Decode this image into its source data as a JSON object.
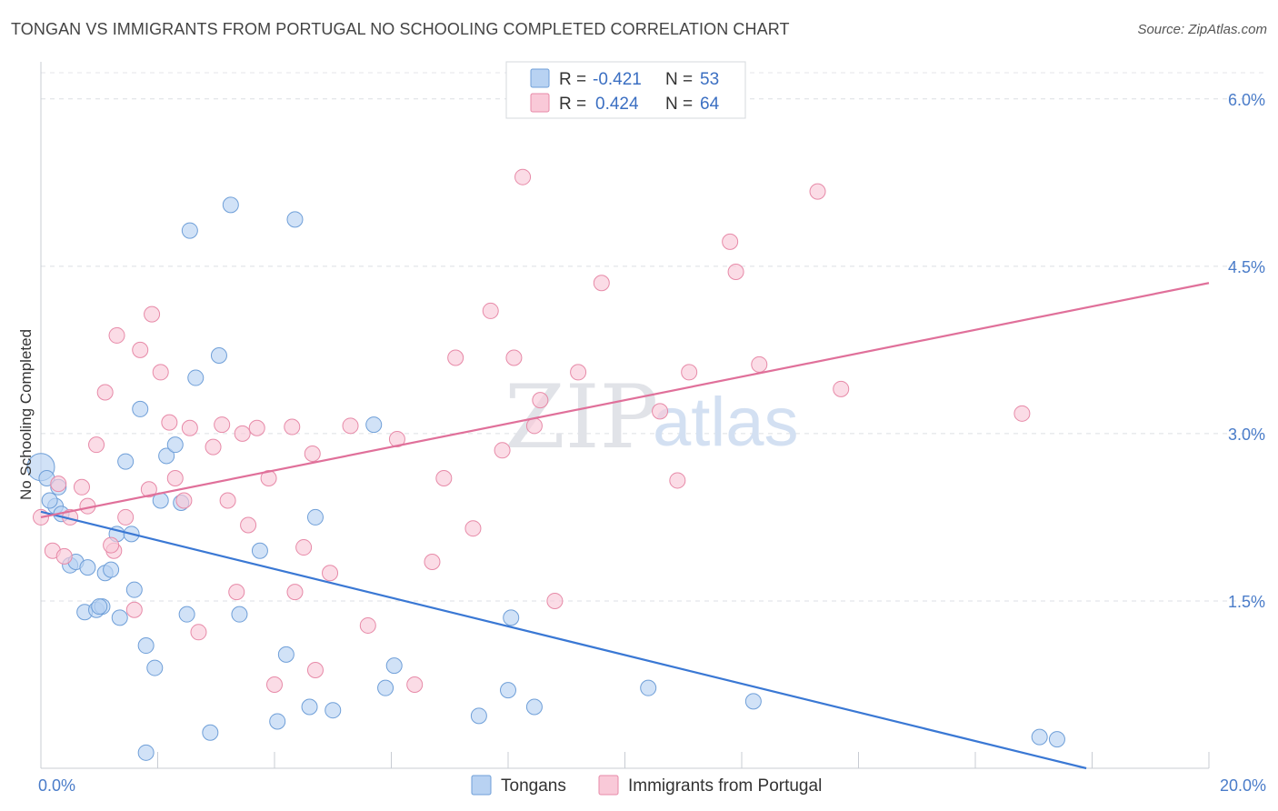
{
  "title": "TONGAN VS IMMIGRANTS FROM PORTUGAL NO SCHOOLING COMPLETED CORRELATION CHART",
  "source": "Source: ZipAtlas.com",
  "watermark": {
    "zip": "ZIP",
    "atlas": "atlas"
  },
  "colors": {
    "blue_fill": "#b8d2f2",
    "blue_stroke": "#6f9fd8",
    "blue_line": "#3a78d4",
    "pink_fill": "#f9c9d8",
    "pink_stroke": "#e78aa8",
    "pink_line": "#e0709a"
  },
  "legend": {
    "rows": [
      {
        "r_label": "R =",
        "r_value": "-0.421",
        "n_label": "N =",
        "n_value": "53"
      },
      {
        "r_label": "R =",
        "r_value": "0.424",
        "n_label": "N =",
        "n_value": "64"
      }
    ]
  },
  "bottom_legend": {
    "items": [
      "Tongans",
      "Immigrants from Portugal"
    ]
  },
  "chart_data": {
    "type": "scatter",
    "title": "TONGAN VS IMMIGRANTS FROM PORTUGAL NO SCHOOLING COMPLETED CORRELATION CHART",
    "ylabel": "No Schooling Completed",
    "xlim": [
      0,
      20
    ],
    "ylim": [
      0,
      6.3
    ],
    "x_tick_labels": [
      {
        "value": 0,
        "label": "0.0%"
      },
      {
        "value": 20,
        "label": "20.0%"
      }
    ],
    "y_tick_labels": [
      {
        "value": 1.5,
        "label": "1.5%"
      },
      {
        "value": 3.0,
        "label": "3.0%"
      },
      {
        "value": 4.5,
        "label": "4.5%"
      },
      {
        "value": 6.0,
        "label": "6.0%"
      }
    ],
    "series": [
      {
        "name": "Tongans",
        "trend": [
          [
            0,
            2.3
          ],
          [
            17.9,
            0.0
          ]
        ],
        "points": [
          [
            0.0,
            2.7
          ],
          [
            0.1,
            2.6
          ],
          [
            0.3,
            2.52
          ],
          [
            0.25,
            2.35
          ],
          [
            0.35,
            2.28
          ],
          [
            0.5,
            1.82
          ],
          [
            0.6,
            1.85
          ],
          [
            0.8,
            1.8
          ],
          [
            1.1,
            1.75
          ],
          [
            1.2,
            1.78
          ],
          [
            0.75,
            1.4
          ],
          [
            0.95,
            1.42
          ],
          [
            1.05,
            1.45
          ],
          [
            1.35,
            1.35
          ],
          [
            1.6,
            1.6
          ],
          [
            1.8,
            1.1
          ],
          [
            1.95,
            0.9
          ],
          [
            1.3,
            2.1
          ],
          [
            1.55,
            2.1
          ],
          [
            1.45,
            2.75
          ],
          [
            1.7,
            3.22
          ],
          [
            2.05,
            2.4
          ],
          [
            2.15,
            2.8
          ],
          [
            2.3,
            2.9
          ],
          [
            2.4,
            2.38
          ],
          [
            2.5,
            1.38
          ],
          [
            2.55,
            4.82
          ],
          [
            2.65,
            3.5
          ],
          [
            3.05,
            3.7
          ],
          [
            3.25,
            5.05
          ],
          [
            2.9,
            0.32
          ],
          [
            3.4,
            1.38
          ],
          [
            3.75,
            1.95
          ],
          [
            4.05,
            0.42
          ],
          [
            4.2,
            1.02
          ],
          [
            4.35,
            4.92
          ],
          [
            4.6,
            0.55
          ],
          [
            4.7,
            2.25
          ],
          [
            5.0,
            0.52
          ],
          [
            5.7,
            3.08
          ],
          [
            5.9,
            0.72
          ],
          [
            6.05,
            0.92
          ],
          [
            1.8,
            0.14
          ],
          [
            7.5,
            0.47
          ],
          [
            8.0,
            0.7
          ],
          [
            8.05,
            1.35
          ],
          [
            8.45,
            0.55
          ],
          [
            10.4,
            0.72
          ],
          [
            12.2,
            0.6
          ],
          [
            17.1,
            0.28
          ],
          [
            17.4,
            0.26
          ],
          [
            0.15,
            2.4
          ],
          [
            1.0,
            1.45
          ]
        ]
      },
      {
        "name": "Immigrants from Portugal",
        "trend": [
          [
            0,
            2.25
          ],
          [
            20,
            4.35
          ]
        ],
        "points": [
          [
            0.0,
            2.25
          ],
          [
            0.2,
            1.95
          ],
          [
            0.4,
            1.9
          ],
          [
            0.5,
            2.25
          ],
          [
            0.7,
            2.52
          ],
          [
            0.8,
            2.35
          ],
          [
            0.95,
            2.9
          ],
          [
            1.1,
            3.37
          ],
          [
            1.25,
            1.95
          ],
          [
            1.3,
            3.88
          ],
          [
            1.45,
            2.25
          ],
          [
            1.6,
            1.42
          ],
          [
            1.7,
            3.75
          ],
          [
            1.85,
            2.5
          ],
          [
            1.9,
            4.07
          ],
          [
            2.05,
            3.55
          ],
          [
            2.2,
            3.1
          ],
          [
            2.3,
            2.6
          ],
          [
            2.45,
            2.4
          ],
          [
            2.55,
            3.05
          ],
          [
            2.7,
            1.22
          ],
          [
            2.95,
            2.88
          ],
          [
            3.1,
            3.08
          ],
          [
            3.2,
            2.4
          ],
          [
            3.35,
            1.58
          ],
          [
            3.45,
            3.0
          ],
          [
            3.55,
            2.18
          ],
          [
            3.7,
            3.05
          ],
          [
            3.9,
            2.6
          ],
          [
            4.0,
            0.75
          ],
          [
            4.3,
            3.06
          ],
          [
            4.35,
            1.58
          ],
          [
            4.5,
            1.98
          ],
          [
            4.65,
            2.82
          ],
          [
            4.7,
            0.88
          ],
          [
            4.95,
            1.75
          ],
          [
            5.3,
            3.07
          ],
          [
            5.6,
            1.28
          ],
          [
            6.1,
            2.95
          ],
          [
            6.4,
            0.75
          ],
          [
            6.7,
            1.85
          ],
          [
            6.9,
            2.6
          ],
          [
            7.1,
            3.68
          ],
          [
            7.4,
            2.15
          ],
          [
            7.7,
            4.1
          ],
          [
            7.9,
            2.85
          ],
          [
            8.1,
            3.68
          ],
          [
            8.25,
            5.3
          ],
          [
            8.45,
            3.07
          ],
          [
            8.55,
            3.3
          ],
          [
            8.8,
            1.5
          ],
          [
            9.2,
            3.55
          ],
          [
            9.6,
            4.35
          ],
          [
            10.6,
            3.2
          ],
          [
            10.9,
            2.58
          ],
          [
            11.1,
            3.55
          ],
          [
            11.8,
            4.72
          ],
          [
            11.9,
            4.45
          ],
          [
            12.3,
            3.62
          ],
          [
            13.3,
            5.17
          ],
          [
            13.7,
            3.4
          ],
          [
            16.8,
            3.18
          ],
          [
            0.3,
            2.55
          ],
          [
            1.2,
            2.0
          ]
        ]
      }
    ]
  }
}
